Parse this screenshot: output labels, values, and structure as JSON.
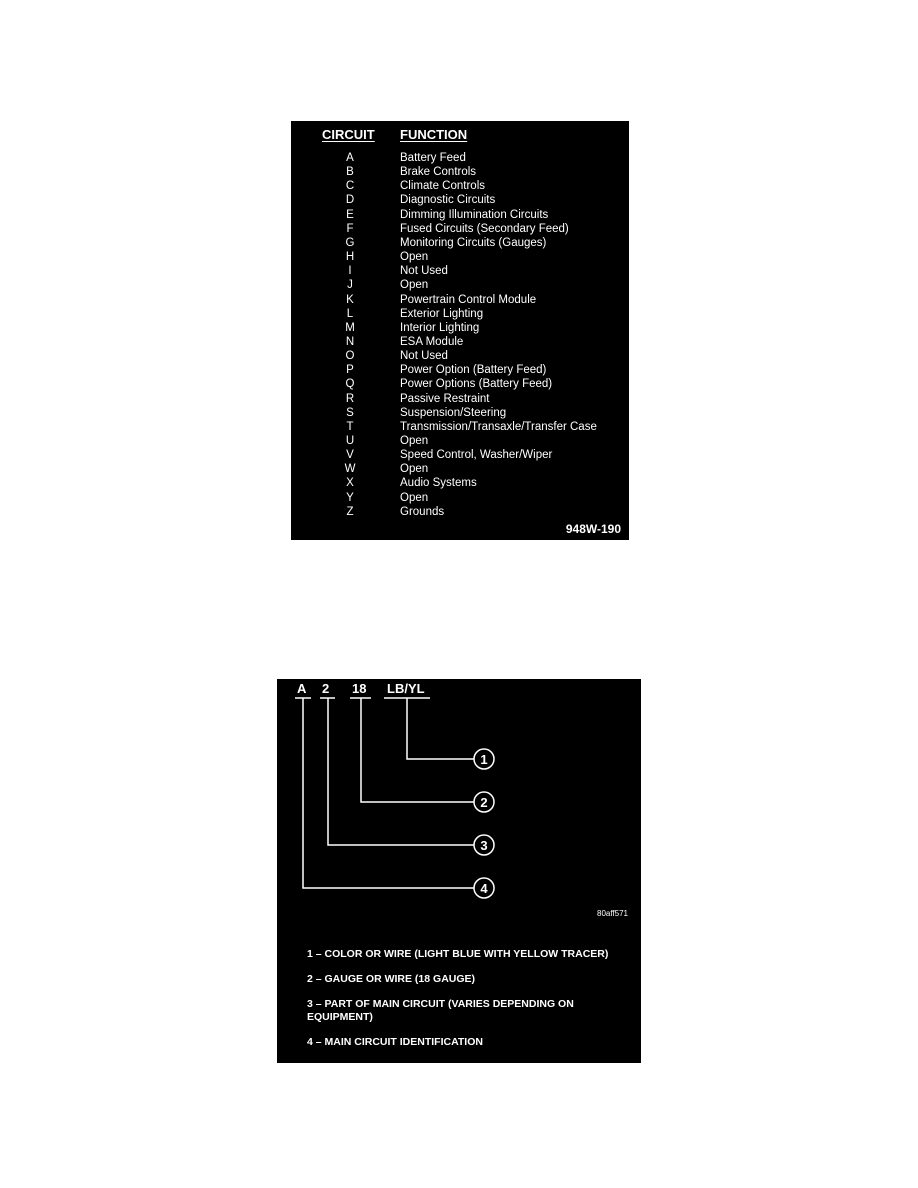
{
  "circuit_table": {
    "header_circuit": "CIRCUIT",
    "header_function": "FUNCTION",
    "rows": [
      {
        "circuit": "A",
        "function": "Battery Feed"
      },
      {
        "circuit": "B",
        "function": "Brake Controls"
      },
      {
        "circuit": "C",
        "function": "Climate Controls"
      },
      {
        "circuit": "D",
        "function": "Diagnostic Circuits"
      },
      {
        "circuit": "E",
        "function": "Dimming Illumination Circuits"
      },
      {
        "circuit": "F",
        "function": "Fused Circuits (Secondary Feed)"
      },
      {
        "circuit": "G",
        "function": "Monitoring Circuits (Gauges)"
      },
      {
        "circuit": "H",
        "function": "Open"
      },
      {
        "circuit": "I",
        "function": "Not Used"
      },
      {
        "circuit": "J",
        "function": "Open"
      },
      {
        "circuit": "K",
        "function": "Powertrain Control Module"
      },
      {
        "circuit": "L",
        "function": "Exterior Lighting"
      },
      {
        "circuit": "M",
        "function": "Interior Lighting"
      },
      {
        "circuit": "N",
        "function": "ESA Module"
      },
      {
        "circuit": "O",
        "function": "Not Used"
      },
      {
        "circuit": "P",
        "function": "Power Option (Battery Feed)"
      },
      {
        "circuit": "Q",
        "function": "Power Options (Battery Feed)"
      },
      {
        "circuit": "R",
        "function": "Passive Restraint"
      },
      {
        "circuit": "S",
        "function": "Suspension/Steering"
      },
      {
        "circuit": "T",
        "function": "Transmission/Transaxle/Transfer Case"
      },
      {
        "circuit": "U",
        "function": "Open"
      },
      {
        "circuit": "V",
        "function": "Speed Control, Washer/Wiper"
      },
      {
        "circuit": "W",
        "function": "Open"
      },
      {
        "circuit": "X",
        "function": "Audio Systems"
      },
      {
        "circuit": "Y",
        "function": "Open"
      },
      {
        "circuit": "Z",
        "function": "Grounds"
      }
    ],
    "reference": "948W-190"
  },
  "wire_code": {
    "parts": [
      "A",
      "2",
      "18",
      "LB/YL"
    ],
    "callouts": [
      "1",
      "2",
      "3",
      "4"
    ],
    "reference": "80aff571",
    "legend": [
      "1 – COLOR OR WIRE (LIGHT BLUE WITH YELLOW TRACER)",
      "2 – GAUGE OR WIRE (18 GAUGE)",
      "3 – PART OF MAIN CIRCUIT (VARIES DEPENDING ON EQUIPMENT)",
      "4 – MAIN CIRCUIT IDENTIFICATION"
    ]
  }
}
